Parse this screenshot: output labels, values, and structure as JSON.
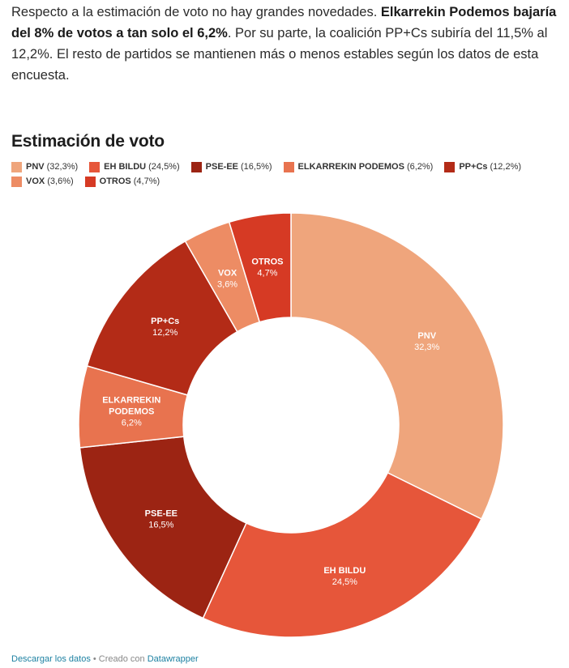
{
  "intro": {
    "part1": "Respecto a la estimación de voto no hay grandes novedades. ",
    "bold": "Elkarrekin Podemos bajaría del 8% de votos a tan solo el 6,2%",
    "part2": ". Por su parte, la coalición PP+Cs subiría del 11,5% al 12,2%. El resto de partidos se mantienen más o menos estables según los datos de esta encuesta."
  },
  "footer": {
    "download_label": "Descargar los datos",
    "separator": " • Creado con ",
    "tool_label": "Datawrapper"
  },
  "chart_data": {
    "type": "pie",
    "donut": true,
    "title": "Estimación de voto",
    "legend_position": "top-left",
    "slices": [
      {
        "name": "PNV",
        "value": 32.3,
        "value_label": "32,3%",
        "legend_label": "(32,3%)",
        "color": "#efa57c",
        "label_lines": [
          "PNV"
        ]
      },
      {
        "name": "EH BILDU",
        "value": 24.5,
        "value_label": "24,5%",
        "legend_label": "(24,5%)",
        "color": "#e6563a",
        "label_lines": [
          "EH BILDU"
        ]
      },
      {
        "name": "PSE-EE",
        "value": 16.5,
        "value_label": "16,5%",
        "legend_label": "(16,5%)",
        "color": "#9c2413",
        "label_lines": [
          "PSE-EE"
        ]
      },
      {
        "name": "ELKARREKIN PODEMOS",
        "value": 6.2,
        "value_label": "6,2%",
        "legend_label": "(6,2%)",
        "color": "#e8734f",
        "label_lines": [
          "ELKARREKIN",
          "PODEMOS"
        ]
      },
      {
        "name": "PP+Cs",
        "value": 12.2,
        "value_label": "12,2%",
        "legend_label": "(12,2%)",
        "color": "#b32b17",
        "label_lines": [
          "PP+Cs"
        ]
      },
      {
        "name": "VOX",
        "value": 3.6,
        "value_label": "3,6%",
        "legend_label": "(3,6%)",
        "color": "#ed8c64",
        "label_lines": [
          "VOX"
        ]
      },
      {
        "name": "OTROS",
        "value": 4.7,
        "value_label": "4,7%",
        "legend_label": "(4,7%)",
        "color": "#d63a24",
        "label_lines": [
          "OTROS"
        ]
      }
    ]
  }
}
